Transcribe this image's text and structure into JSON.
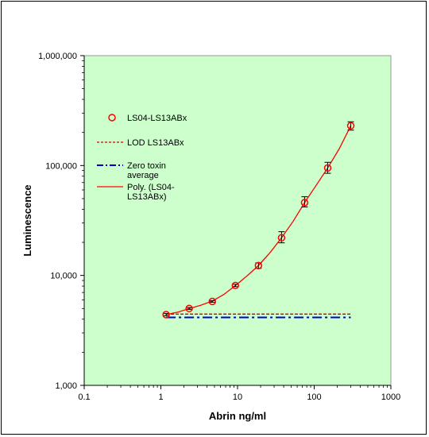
{
  "chart_data": {
    "type": "scatter",
    "title": "",
    "xlabel": "Abrin ng/ml",
    "ylabel": "Luminescence",
    "xscale": "log",
    "yscale": "log",
    "xlim": [
      0.1,
      1000
    ],
    "ylim": [
      1000,
      1000000
    ],
    "x_ticks": [
      {
        "value": 0.1,
        "label": "0.1"
      },
      {
        "value": 1,
        "label": "1"
      },
      {
        "value": 10,
        "label": "10"
      },
      {
        "value": 100,
        "label": "100"
      },
      {
        "value": 1000,
        "label": "1000"
      }
    ],
    "y_ticks": [
      {
        "value": 1000,
        "label": "1,000"
      },
      {
        "value": 10000,
        "label": "10,000"
      },
      {
        "value": 100000,
        "label": "100,000"
      },
      {
        "value": 1000000,
        "label": "1,000,000"
      }
    ],
    "grid": false,
    "plot_background": "#ccffcc",
    "legend_position": "top-left",
    "series": [
      {
        "name": "LS04-LS13ABx",
        "kind": "markers",
        "marker": "open-circle",
        "color": "#ff0000",
        "x": [
          1.17,
          2.34,
          4.69,
          9.38,
          18.75,
          37.5,
          75,
          150,
          300
        ],
        "y": [
          4400,
          5000,
          5800,
          8100,
          12300,
          22000,
          46000,
          95000,
          230000
        ],
        "err_low": [
          4300,
          4900,
          5700,
          7900,
          11600,
          19800,
          42000,
          85000,
          210000
        ],
        "err_high": [
          4500,
          5100,
          5900,
          8300,
          13000,
          25000,
          52000,
          107000,
          250000
        ]
      },
      {
        "name": "LOD LS13ABx",
        "kind": "line",
        "style": "dashed",
        "color": "#cc0000",
        "x": [
          1.17,
          300
        ],
        "y": [
          4450,
          4450
        ]
      },
      {
        "name": "Zero toxin average",
        "kind": "line",
        "style": "dash-dot",
        "color": "#0000cc",
        "x": [
          1.17,
          300
        ],
        "y": [
          4150,
          4150
        ]
      },
      {
        "name": "Poly. (LS04-LS13ABx)",
        "kind": "line",
        "style": "solid",
        "color": "#ff0000",
        "x": [
          1.17,
          1.7,
          2.34,
          3.3,
          4.69,
          6.6,
          9.38,
          13.3,
          18.75,
          26.5,
          37.5,
          53,
          75,
          106,
          150,
          212,
          300
        ],
        "y": [
          4400,
          4650,
          5000,
          5350,
          5850,
          6700,
          8100,
          9900,
          12300,
          16100,
          22000,
          31000,
          46000,
          66000,
          95000,
          142000,
          230000
        ]
      }
    ],
    "legend": {
      "entries": [
        {
          "label_lines": [
            "LS04-LS13ABx"
          ],
          "symbol": "open-circle",
          "color": "#ff0000"
        },
        {
          "label_lines": [
            "LOD LS13ABx"
          ],
          "symbol": "dashed",
          "color": "#cc0000"
        },
        {
          "label_lines": [
            "Zero toxin",
            "average"
          ],
          "symbol": "dash-dot",
          "color": "#0000cc"
        },
        {
          "label_lines": [
            "Poly. (LS04-",
            "LS13ABx)"
          ],
          "symbol": "solid",
          "color": "#ff0000"
        }
      ]
    }
  }
}
